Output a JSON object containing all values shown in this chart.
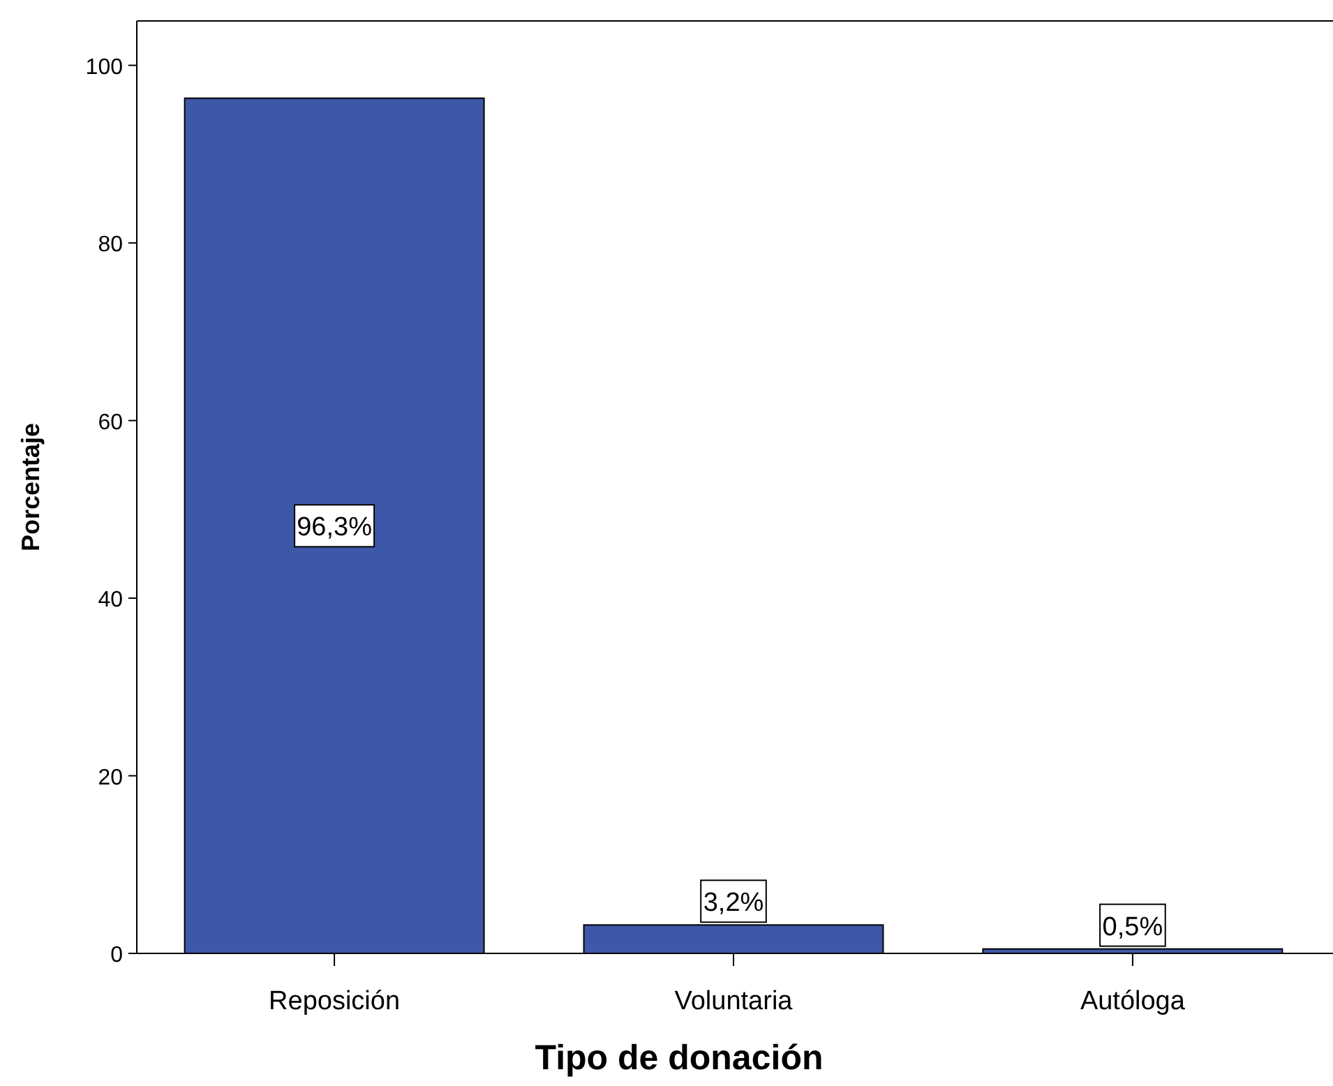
{
  "chart_data": {
    "type": "bar",
    "xlabel": "Tipo de donación",
    "ylabel": "Porcentaje",
    "categories": [
      "Reposición",
      "Voluntaria",
      "Autóloga"
    ],
    "values": [
      96.3,
      3.2,
      0.5
    ],
    "value_labels": [
      "96,3%",
      "3,2%",
      "0,5%"
    ],
    "color": "#3e58a8",
    "ylim": [
      0,
      105
    ],
    "yticks": [
      0,
      20,
      40,
      60,
      80,
      100
    ],
    "grid": false
  }
}
